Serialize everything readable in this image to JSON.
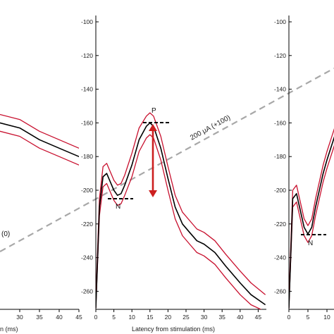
{
  "colors": {
    "mean_line": "#000000",
    "ci_line": "#c8102e",
    "arrow": "#cc1f1f",
    "diagonal": "#a8a8a8",
    "axis": "#000000"
  },
  "chart_data": [
    {
      "type": "line",
      "panel": "left (cropped)",
      "x_tick_labels": [
        "30",
        "35",
        "40",
        "45"
      ],
      "xlabel": "n (ms)",
      "ylabel": "",
      "ylim": [
        -270,
        -95
      ],
      "series": [
        {
          "x": [
            0,
            5,
            10,
            15,
            20,
            25,
            30,
            35,
            40,
            45,
            48
          ],
          "values": [
            -151,
            -152,
            -154,
            -155,
            -157,
            -160,
            -163,
            -170,
            -175,
            -180,
            -183
          ]
        },
        {
          "x": [
            0,
            5,
            10,
            15,
            20,
            25,
            30,
            35,
            40,
            45,
            48
          ],
          "values": [
            -146,
            -147,
            -149,
            -150,
            -152,
            -155,
            -158,
            -165,
            -170,
            -175,
            -178
          ]
        },
        {
          "x": [
            0,
            5,
            10,
            15,
            20,
            25,
            30,
            35,
            40,
            45,
            48
          ],
          "values": [
            -156,
            -157,
            -159,
            -160,
            -162,
            -165,
            -168,
            -175,
            -180,
            -185,
            -188
          ]
        }
      ],
      "annotations": [
        {
          "text": "(0)"
        }
      ]
    },
    {
      "type": "line",
      "panel": "middle",
      "x_ticks": [
        0,
        5,
        10,
        15,
        20,
        25,
        30,
        35,
        40,
        45
      ],
      "x_tick_labels": [
        "0",
        "5",
        "10",
        "15",
        "20",
        "25",
        "30",
        "35",
        "40",
        "45"
      ],
      "y_ticks": [
        -100,
        -120,
        -140,
        -160,
        -180,
        -200,
        -220,
        -240,
        -260
      ],
      "y_tick_labels": [
        "-100",
        "-120",
        "-140",
        "-160",
        "-180",
        "-200",
        "-220",
        "-240",
        "-260"
      ],
      "xlabel": "Latency from stimulation (ms)",
      "ylabel": "",
      "xlim": [
        0,
        47
      ],
      "ylim": [
        -270,
        -95
      ],
      "series": [
        {
          "x": [
            0,
            1,
            2,
            3,
            4,
            5,
            6,
            7,
            8,
            10,
            12,
            14,
            15,
            16,
            18,
            20,
            22,
            24,
            26,
            28,
            30,
            33,
            36,
            40,
            43,
            47
          ],
          "values": [
            -270,
            -210,
            -192,
            -190,
            -195,
            -200,
            -203,
            -202,
            -197,
            -185,
            -170,
            -162,
            -160,
            -162,
            -175,
            -193,
            -210,
            -220,
            -225,
            -230,
            -232,
            -237,
            -245,
            -255,
            -262,
            -268
          ]
        },
        {
          "x": [
            0,
            1,
            2,
            3,
            4,
            5,
            6,
            7,
            8,
            10,
            12,
            14,
            15,
            16,
            18,
            20,
            22,
            24,
            26,
            28,
            30,
            33,
            36,
            40,
            43,
            47
          ],
          "values": [
            -265,
            -205,
            -186,
            -184,
            -189,
            -194,
            -197,
            -196,
            -191,
            -178,
            -163,
            -156,
            -154,
            -156,
            -168,
            -186,
            -203,
            -213,
            -218,
            -223,
            -225,
            -230,
            -238,
            -248,
            -255,
            -262
          ]
        },
        {
          "x": [
            0,
            1,
            2,
            3,
            4,
            5,
            6,
            7,
            8,
            10,
            12,
            14,
            15,
            16,
            18,
            20,
            22,
            24,
            26,
            28,
            30,
            33,
            36,
            40,
            43,
            47
          ],
          "values": [
            -270,
            -215,
            -198,
            -196,
            -201,
            -206,
            -209,
            -208,
            -203,
            -192,
            -177,
            -169,
            -167,
            -169,
            -182,
            -200,
            -217,
            -227,
            -232,
            -237,
            -239,
            -244,
            -252,
            -262,
            -268,
            -272
          ]
        }
      ],
      "annotations": [
        {
          "text": "P",
          "x": 15,
          "y": -160
        },
        {
          "text": "N",
          "x": 6,
          "y": -205
        }
      ],
      "arrow": {
        "x": 15.5,
        "from": -160,
        "to": -205
      }
    },
    {
      "type": "line",
      "panel": "right (cropped)",
      "x_ticks": [
        0,
        5,
        10
      ],
      "x_tick_labels": [
        "0",
        "5",
        "10"
      ],
      "y_ticks": [
        -100,
        -120,
        -140,
        -160,
        -180,
        -200,
        -220,
        -240,
        -260
      ],
      "y_tick_labels": [
        "-100",
        "-120",
        "-140",
        "-160",
        "-180",
        "-200",
        "-220",
        "-240",
        "-260"
      ],
      "xlim": [
        0,
        47
      ],
      "ylim": [
        -270,
        -95
      ],
      "series": [
        {
          "x": [
            0,
            1,
            2,
            3,
            4,
            5,
            6,
            7,
            8,
            9,
            10,
            11,
            12
          ],
          "values": [
            -270,
            -205,
            -202,
            -212,
            -222,
            -226,
            -222,
            -210,
            -200,
            -190,
            -182,
            -175,
            -168
          ]
        },
        {
          "x": [
            0,
            1,
            2,
            3,
            4,
            5,
            6,
            7,
            8,
            9,
            10,
            11,
            12
          ],
          "values": [
            -265,
            -200,
            -197,
            -207,
            -217,
            -221,
            -217,
            -205,
            -195,
            -185,
            -177,
            -170,
            -163
          ]
        },
        {
          "x": [
            0,
            1,
            2,
            3,
            4,
            5,
            6,
            7,
            8,
            9,
            10,
            11,
            12
          ],
          "values": [
            -270,
            -210,
            -207,
            -217,
            -227,
            -231,
            -227,
            -215,
            -205,
            -195,
            -187,
            -180,
            -173
          ]
        }
      ],
      "annotations": [
        {
          "text": "N",
          "x": 5,
          "y": -227
        }
      ]
    }
  ],
  "diagonal_label": "200 μA (+100)"
}
